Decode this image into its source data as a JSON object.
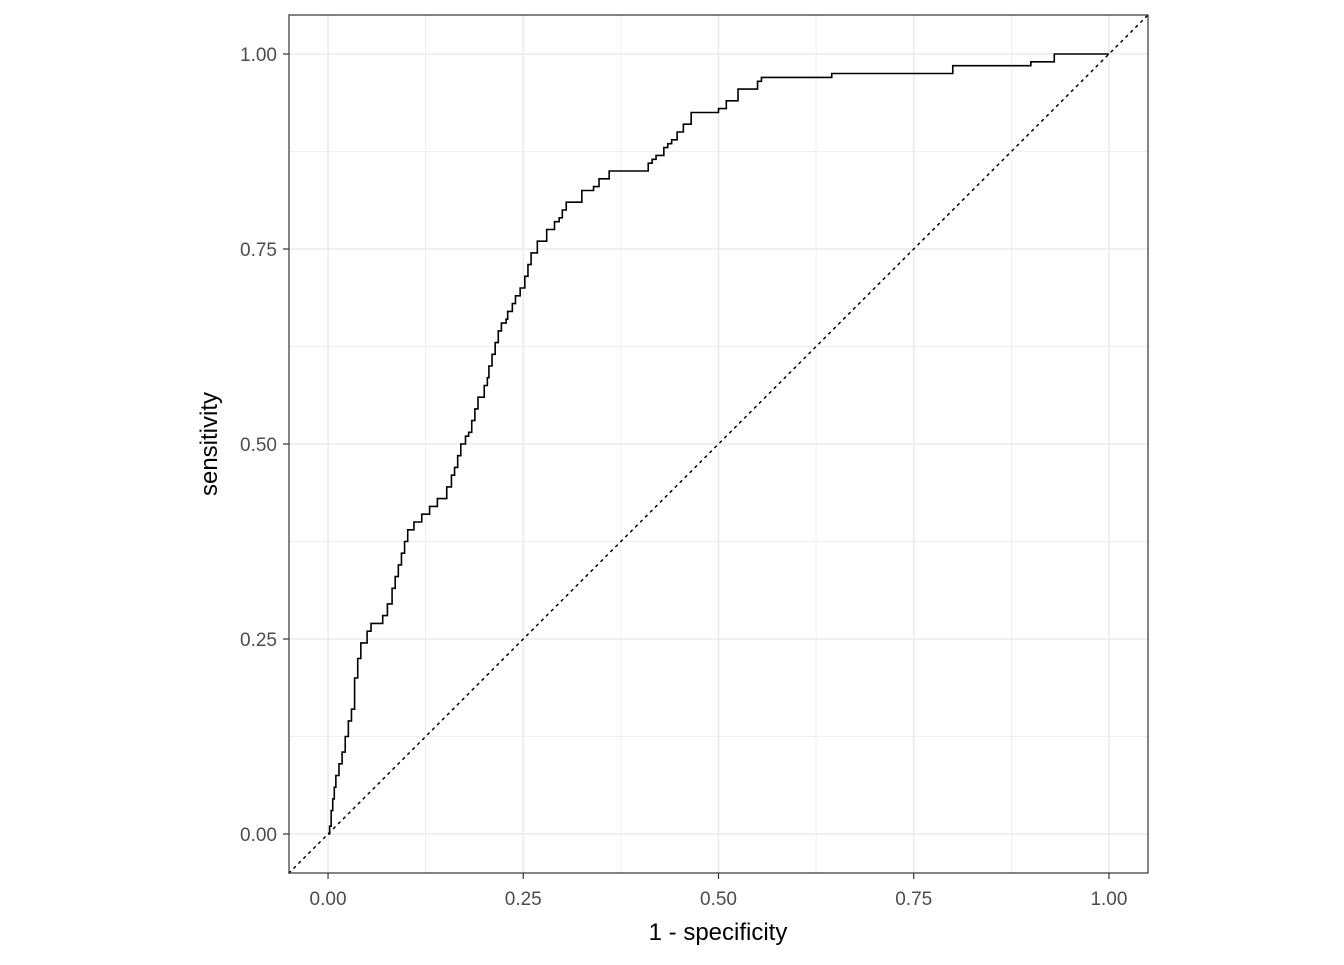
{
  "chart_data": {
    "type": "line",
    "title": "",
    "xlabel": "1 - specificity",
    "ylabel": "sensitivity",
    "xlim": [
      -0.05,
      1.05
    ],
    "ylim": [
      -0.05,
      1.05
    ],
    "x_ticks": [
      0,
      0.25,
      0.5,
      0.75,
      1
    ],
    "y_ticks": [
      0,
      0.25,
      0.5,
      0.75,
      1
    ],
    "x_tick_labels": [
      "0.00",
      "0.25",
      "0.50",
      "0.75",
      "1.00"
    ],
    "y_tick_labels": [
      "0.00",
      "0.25",
      "0.50",
      "0.75",
      "1.00"
    ],
    "grid": true,
    "aspect": "equal",
    "line_color": "#000000",
    "grid_color": "#ebebeb",
    "reference_line": {
      "x": [
        -0.05,
        1.05
      ],
      "y": [
        -0.05,
        1.05
      ],
      "style": "dotted"
    },
    "series": [
      {
        "step": true,
        "x": [
          0,
          0.002,
          0.004,
          0.006,
          0.008,
          0.01,
          0.014,
          0.018,
          0.022,
          0.026,
          0.03,
          0.034,
          0.038,
          0.042,
          0.05,
          0.055,
          0.07,
          0.076,
          0.082,
          0.086,
          0.09,
          0.094,
          0.098,
          0.102,
          0.11,
          0.12,
          0.13,
          0.14,
          0.152,
          0.158,
          0.162,
          0.166,
          0.17,
          0.176,
          0.18,
          0.184,
          0.188,
          0.192,
          0.2,
          0.204,
          0.206,
          0.21,
          0.214,
          0.218,
          0.222,
          0.228,
          0.23,
          0.236,
          0.24,
          0.246,
          0.252,
          0.256,
          0.26,
          0.268,
          0.28,
          0.29,
          0.296,
          0.3,
          0.305,
          0.325,
          0.34,
          0.347,
          0.36,
          0.41,
          0.415,
          0.42,
          0.43,
          0.435,
          0.44,
          0.447,
          0.455,
          0.465,
          0.5,
          0.51,
          0.525,
          0.55,
          0.555,
          0.645,
          0.8,
          0.9,
          0.93,
          1.0
        ],
        "y": [
          0,
          0.01,
          0.03,
          0.045,
          0.06,
          0.075,
          0.09,
          0.105,
          0.125,
          0.145,
          0.16,
          0.2,
          0.225,
          0.245,
          0.26,
          0.27,
          0.28,
          0.295,
          0.315,
          0.33,
          0.345,
          0.36,
          0.375,
          0.39,
          0.4,
          0.41,
          0.42,
          0.43,
          0.445,
          0.46,
          0.47,
          0.485,
          0.5,
          0.51,
          0.515,
          0.53,
          0.545,
          0.56,
          0.575,
          0.585,
          0.6,
          0.615,
          0.63,
          0.645,
          0.655,
          0.66,
          0.67,
          0.68,
          0.69,
          0.7,
          0.715,
          0.73,
          0.745,
          0.76,
          0.775,
          0.785,
          0.79,
          0.8,
          0.81,
          0.825,
          0.83,
          0.84,
          0.85,
          0.86,
          0.865,
          0.87,
          0.88,
          0.885,
          0.89,
          0.9,
          0.91,
          0.925,
          0.93,
          0.94,
          0.955,
          0.965,
          0.97,
          0.975,
          0.985,
          0.99,
          1.0,
          1.0
        ]
      }
    ]
  }
}
